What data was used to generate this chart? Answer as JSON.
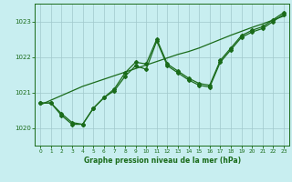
{
  "title": "Graphe pression niveau de la mer (hPa)",
  "bg_color": "#c8eef0",
  "line_color": "#1a6b1a",
  "grid_color": "#a0c8cc",
  "x_values": [
    0,
    1,
    2,
    3,
    4,
    5,
    6,
    7,
    8,
    9,
    10,
    11,
    12,
    13,
    14,
    15,
    16,
    17,
    18,
    19,
    20,
    21,
    22,
    23
  ],
  "y_main": [
    1020.7,
    1020.7,
    1020.4,
    1020.15,
    1020.1,
    1020.55,
    1020.85,
    1021.05,
    1021.45,
    1021.75,
    1021.65,
    1022.45,
    1021.75,
    1021.55,
    1021.35,
    1021.2,
    1021.15,
    1021.85,
    1022.2,
    1022.55,
    1022.7,
    1022.8,
    1023.0,
    1023.2
  ],
  "y_zigzag": [
    1020.7,
    1020.7,
    1020.35,
    1020.1,
    1020.1,
    1020.55,
    1020.85,
    1021.1,
    1021.55,
    1021.85,
    1021.8,
    1022.5,
    1021.8,
    1021.6,
    1021.4,
    1021.25,
    1021.2,
    1021.9,
    1022.25,
    1022.6,
    1022.75,
    1022.85,
    1023.05,
    1023.25
  ],
  "y_trend": [
    1020.65,
    1020.78,
    1020.91,
    1021.04,
    1021.17,
    1021.27,
    1021.37,
    1021.47,
    1021.57,
    1021.67,
    1021.77,
    1021.87,
    1021.97,
    1022.07,
    1022.15,
    1022.25,
    1022.37,
    1022.49,
    1022.61,
    1022.72,
    1022.83,
    1022.93,
    1023.04,
    1023.15
  ],
  "ylim": [
    1019.5,
    1023.5
  ],
  "yticks": [
    1020,
    1021,
    1022,
    1023
  ],
  "xlim": [
    -0.5,
    23.5
  ],
  "xticks": [
    0,
    1,
    2,
    3,
    4,
    5,
    6,
    7,
    8,
    9,
    10,
    11,
    12,
    13,
    14,
    15,
    16,
    17,
    18,
    19,
    20,
    21,
    22,
    23
  ]
}
